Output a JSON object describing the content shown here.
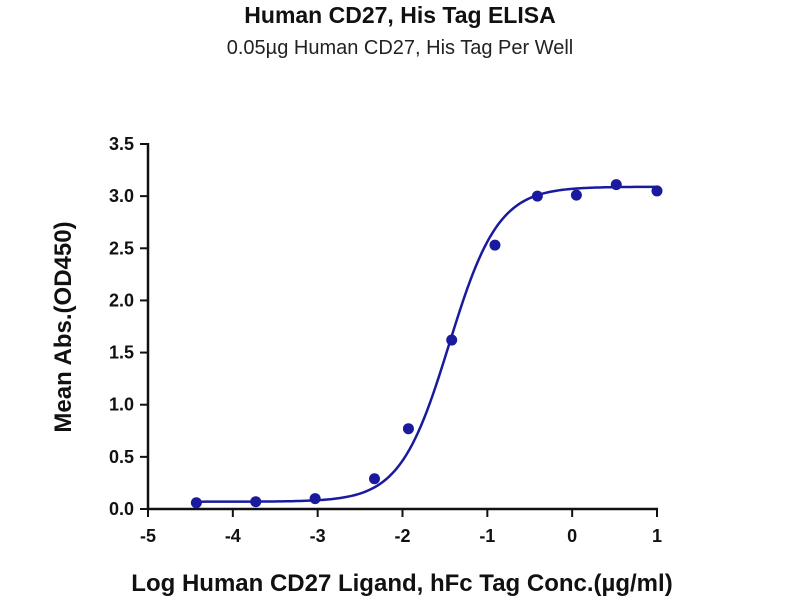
{
  "title": "Human CD27, His Tag ELISA",
  "subtitle": "0.05µg Human CD27, His Tag Per Well",
  "chart_data": {
    "type": "scatter",
    "xlabel": "Log Human CD27 Ligand, hFc Tag Conc.(µg/ml)",
    "ylabel": "Mean Abs.(OD450)",
    "xlim": [
      -5,
      1
    ],
    "ylim": [
      0,
      3.5
    ],
    "xticks": [
      "-5",
      "-4",
      "-3",
      "-2",
      "-1",
      "0",
      "1"
    ],
    "yticks": [
      "0.0",
      "0.5",
      "1.0",
      "1.5",
      "2.0",
      "2.5",
      "3.0",
      "3.5"
    ],
    "series": [
      {
        "x": [
          -4.43,
          -3.73,
          -3.03,
          -2.33,
          -1.93,
          -1.42,
          -0.91,
          -0.41,
          0.05,
          0.52,
          1.0
        ],
        "y": [
          0.06,
          0.07,
          0.1,
          0.29,
          0.77,
          1.62,
          2.53,
          3.0,
          3.01,
          3.11,
          3.05
        ],
        "fit_curve": true
      }
    ],
    "grid": false,
    "legend": "none",
    "colors": {
      "series": "#1a1a9e",
      "axis": "#111111"
    }
  }
}
